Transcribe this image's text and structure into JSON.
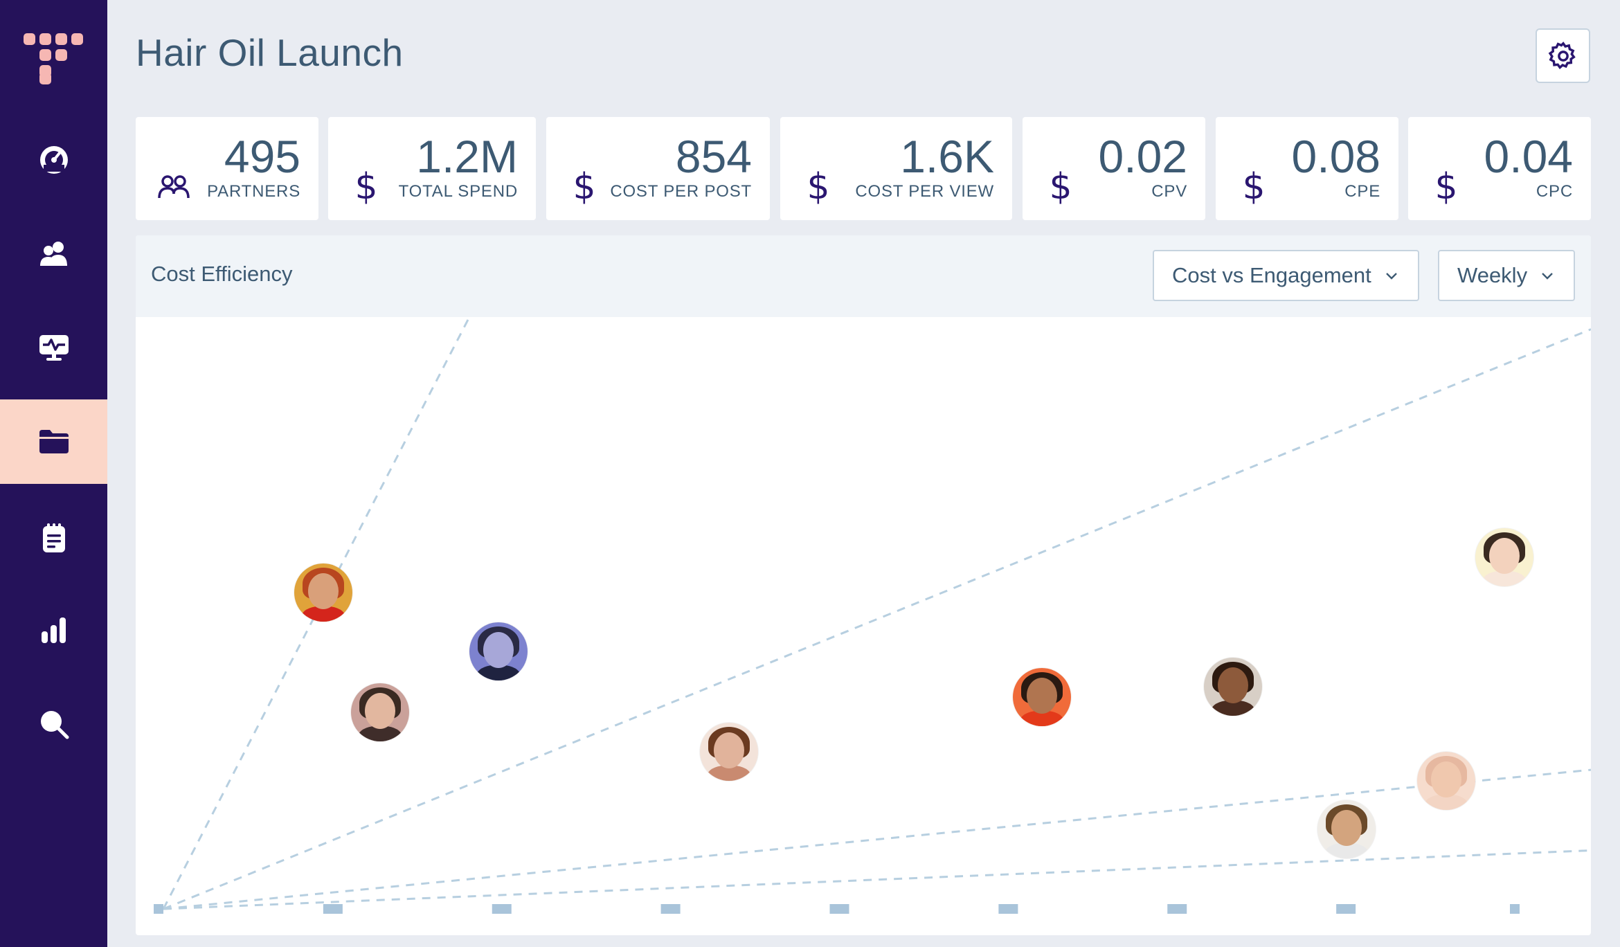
{
  "page": {
    "title": "Hair Oil Launch"
  },
  "sidebar": {
    "items": [
      {
        "name": "dashboard",
        "icon": "speedometer-icon",
        "active": false
      },
      {
        "name": "partners",
        "icon": "users-icon",
        "active": false
      },
      {
        "name": "monitor",
        "icon": "monitor-pulse-icon",
        "active": false
      },
      {
        "name": "campaigns",
        "icon": "folder-icon",
        "active": true
      },
      {
        "name": "notes",
        "icon": "notepad-icon",
        "active": false
      },
      {
        "name": "analytics",
        "icon": "bar-chart-icon",
        "active": false
      },
      {
        "name": "search",
        "icon": "search-icon",
        "active": false
      }
    ]
  },
  "stats": [
    {
      "value": "495",
      "label": "PARTNERS",
      "icon": "users-outline-icon"
    },
    {
      "value": "1.2M",
      "label": "TOTAL SPEND",
      "icon": "dollar-icon"
    },
    {
      "value": "854",
      "label": "COST PER POST",
      "icon": "dollar-icon"
    },
    {
      "value": "1.6K",
      "label": "COST PER VIEW",
      "icon": "dollar-icon"
    },
    {
      "value": "0.02",
      "label": "CPV",
      "icon": "dollar-icon"
    },
    {
      "value": "0.08",
      "label": "CPE",
      "icon": "dollar-icon"
    },
    {
      "value": "0.04",
      "label": "CPC",
      "icon": "dollar-icon"
    }
  ],
  "panel": {
    "title": "Cost Efficiency",
    "metric_select": "Cost vs Engagement",
    "period_select": "Weekly"
  },
  "colors": {
    "sidebar": "#25125a",
    "active_nav": "#fbd6c8",
    "logo": "#f6b7b3",
    "text": "#3d5a73",
    "guide_line": "#b7cfe0"
  },
  "chart_data": {
    "type": "scatter",
    "title": "",
    "xlabel": "",
    "ylabel": "",
    "x_ticks": 9,
    "xlim": [
      0,
      8
    ],
    "ylim": [
      0,
      10
    ],
    "grid": false,
    "guide_line_slopes": [
      7.8,
      2.7,
      1.05,
      0.42
    ],
    "points": [
      {
        "id": "partner-1",
        "x": 0.93,
        "y": 7.55,
        "skin": "#d9a07a",
        "hair": "#b8461f",
        "shirt": "#d4251c",
        "bg": "#e0a33a"
      },
      {
        "id": "partner-2",
        "x": 1.26,
        "y": 4.7,
        "skin": "#e2b79f",
        "hair": "#3a2a22",
        "shirt": "#3f2d2a",
        "bg": "#caa19a"
      },
      {
        "id": "partner-3",
        "x": 1.95,
        "y": 6.15,
        "skin": "#a7a7d8",
        "hair": "#2a2a44",
        "shirt": "#1f2340",
        "bg": "#7d82cf"
      },
      {
        "id": "partner-4",
        "x": 3.29,
        "y": 3.75,
        "skin": "#e1b39b",
        "hair": "#6b3a20",
        "shirt": "#c98a70",
        "bg": "#f3e3da"
      },
      {
        "id": "partner-5",
        "x": 5.11,
        "y": 5.05,
        "skin": "#b07550",
        "hair": "#2a1a12",
        "shirt": "#e33a1a",
        "bg": "#f06b3a"
      },
      {
        "id": "partner-6",
        "x": 6.22,
        "y": 5.3,
        "skin": "#8d5a3b",
        "hair": "#2d1a10",
        "shirt": "#4a2c20",
        "bg": "#d8cfc6"
      },
      {
        "id": "partner-7",
        "x": 6.88,
        "y": 1.9,
        "skin": "#d3a47e",
        "hair": "#6b4a2a",
        "shirt": "#e9e9e9",
        "bg": "#f0ede8"
      },
      {
        "id": "partner-8",
        "x": 7.46,
        "y": 3.05,
        "skin": "#f0c8ae",
        "hair": "#e6b8a0",
        "shirt": "#f3d5c4",
        "bg": "#f6dccd"
      },
      {
        "id": "partner-9",
        "x": 7.8,
        "y": 8.4,
        "skin": "#f3d2bd",
        "hair": "#3a2a20",
        "shirt": "#f7e6da",
        "bg": "#f9f1d0"
      }
    ]
  }
}
